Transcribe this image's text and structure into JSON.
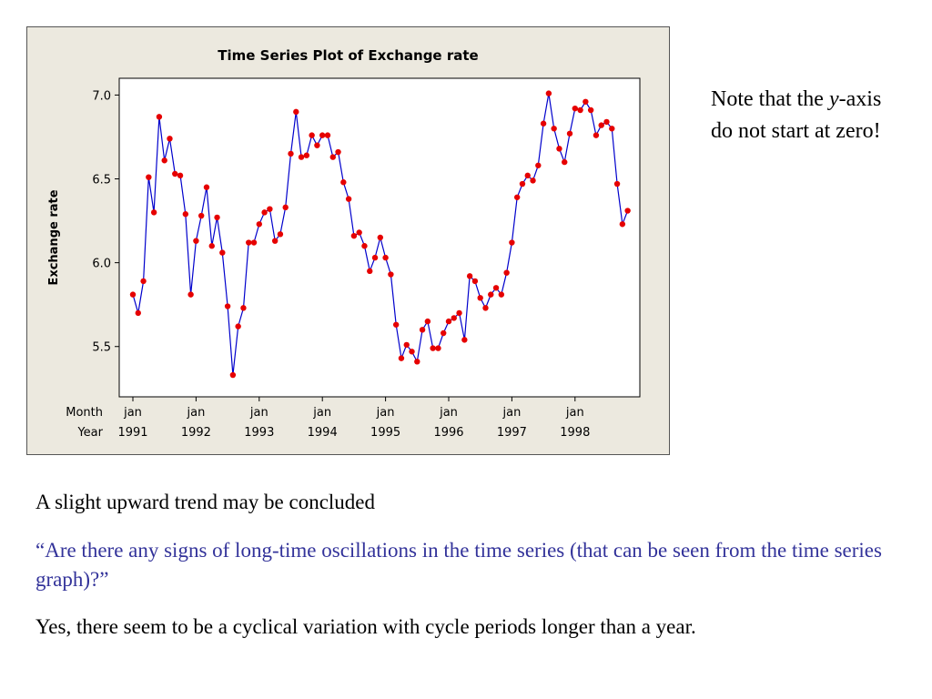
{
  "slide": {
    "note_prefix": "Note that the ",
    "note_italic": "y",
    "note_suffix": "-axis do not start at zero!",
    "trend_text": "A slight upward trend may be concluded",
    "question_text": "“Are there any signs of long-time oscillations in the time series (that can be seen from the time series graph)?”",
    "answer_text": "Yes, there seem to be a cyclical variation with cycle periods longer than a year."
  },
  "colors": {
    "line": "#0000cc",
    "marker": "#e60000",
    "frame_bg": "#ece9df",
    "question": "#33339a"
  },
  "chart_data": {
    "type": "line",
    "title": "Time Series Plot of Exchange rate",
    "ylabel": "Exchange rate",
    "ylim": [
      5.2,
      7.1
    ],
    "y_ticks": [
      5.5,
      6.0,
      6.5,
      7.0
    ],
    "y_tick_labels": [
      "5.5",
      "6.0",
      "6.5",
      "7.0"
    ],
    "x_axis_row_labels": [
      "Month",
      "Year"
    ],
    "x_ticks": [
      {
        "month": "jan",
        "year": "1991"
      },
      {
        "month": "jan",
        "year": "1992"
      },
      {
        "month": "jan",
        "year": "1993"
      },
      {
        "month": "jan",
        "year": "1994"
      },
      {
        "month": "jan",
        "year": "1995"
      },
      {
        "month": "jan",
        "year": "1996"
      },
      {
        "month": "jan",
        "year": "1997"
      },
      {
        "month": "jan",
        "year": "1998"
      }
    ],
    "start": "1991-01",
    "frequency": "monthly",
    "series": [
      {
        "values": [
          5.81,
          5.7,
          5.89,
          6.51,
          6.3,
          6.87,
          6.61,
          6.74,
          6.53,
          6.52,
          6.29,
          5.81,
          6.13,
          6.28,
          6.45,
          6.1,
          6.27,
          6.06,
          5.74,
          5.33,
          5.62,
          5.73,
          6.12,
          6.12,
          6.23,
          6.3,
          6.32,
          6.13,
          6.17,
          6.33,
          6.65,
          6.9,
          6.63,
          6.64,
          6.76,
          6.7,
          6.76,
          6.76,
          6.63,
          6.66,
          6.48,
          6.38,
          6.16,
          6.18,
          6.1,
          5.95,
          6.03,
          6.15,
          6.03,
          5.93,
          5.63,
          5.43,
          5.51,
          5.47,
          5.41,
          5.6,
          5.65,
          5.49,
          5.49,
          5.58,
          5.65,
          5.67,
          5.7,
          5.54,
          5.92,
          5.89,
          5.79,
          5.73,
          5.81,
          5.85,
          5.81,
          5.94,
          6.12,
          6.39,
          6.47,
          6.52,
          6.49,
          6.58,
          6.83,
          7.01,
          6.8,
          6.68,
          6.6,
          6.77,
          6.92,
          6.91,
          6.96,
          6.91,
          6.76,
          6.82,
          6.84,
          6.8,
          6.47,
          6.23,
          6.31
        ]
      }
    ]
  }
}
